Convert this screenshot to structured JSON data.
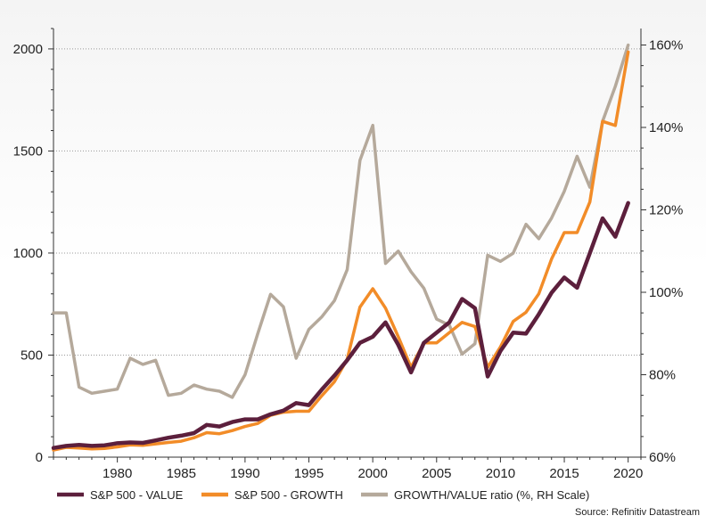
{
  "chart_data": {
    "type": "line",
    "title": "",
    "xlabel": "",
    "ylabel": "",
    "xlim": [
      1975,
      2021
    ],
    "ylim_left": [
      0,
      2100
    ],
    "ylim_right": [
      60,
      164
    ],
    "grid": "horizontal dotted",
    "legend_position": "bottom",
    "x_ticks": [
      1980,
      1985,
      1990,
      1995,
      2000,
      2005,
      2010,
      2015,
      2020
    ],
    "y_left_ticks": [
      0,
      500,
      1000,
      1500,
      2000
    ],
    "y_right_ticks": [
      60,
      80,
      100,
      120,
      140,
      160
    ],
    "y_right_tick_labels": [
      "60%",
      "80%",
      "100%",
      "120%",
      "140%",
      "160%"
    ],
    "x": [
      1975,
      1976,
      1977,
      1978,
      1979,
      1980,
      1981,
      1982,
      1983,
      1984,
      1985,
      1986,
      1987,
      1988,
      1989,
      1990,
      1991,
      1992,
      1993,
      1994,
      1995,
      1996,
      1997,
      1998,
      1999,
      2000,
      2001,
      2002,
      2003,
      2004,
      2005,
      2006,
      2007,
      2008,
      2009,
      2010,
      2011,
      2012,
      2013,
      2014,
      2015,
      2016,
      2017,
      2018,
      2019,
      2020
    ],
    "series": [
      {
        "name": "S&P 500 - VALUE",
        "axis": "left",
        "color": "#5c1f3c",
        "values": [
          45,
          55,
          60,
          55,
          58,
          68,
          72,
          70,
          82,
          95,
          105,
          118,
          158,
          150,
          172,
          185,
          185,
          210,
          228,
          265,
          255,
          330,
          400,
          475,
          560,
          590,
          660,
          550,
          415,
          560,
          610,
          660,
          775,
          730,
          395,
          520,
          610,
          605,
          700,
          805,
          880,
          830,
          1000,
          1170,
          1080,
          1245
        ]
      },
      {
        "name": "S&P 500 - GROWTH",
        "axis": "left",
        "color": "#f28c28",
        "values": [
          35,
          48,
          45,
          40,
          43,
          50,
          60,
          58,
          65,
          72,
          78,
          95,
          120,
          115,
          130,
          150,
          165,
          205,
          220,
          225,
          225,
          300,
          370,
          480,
          735,
          825,
          730,
          590,
          440,
          560,
          560,
          610,
          660,
          640,
          440,
          540,
          665,
          710,
          800,
          970,
          1100,
          1100,
          1250,
          1645,
          1625,
          1985
        ]
      },
      {
        "name": "GROWTH/VALUE ratio (%, RH Scale)",
        "axis": "right",
        "color": "#b5a99b",
        "values": [
          95,
          95,
          77,
          75.5,
          76,
          76.5,
          84,
          82.5,
          83.5,
          75,
          75.5,
          77.5,
          76.5,
          76,
          74.5,
          80,
          90,
          99.5,
          96.5,
          84,
          91,
          94,
          98,
          105.5,
          132,
          140.5,
          107,
          110,
          105,
          101,
          93.5,
          92,
          85,
          87.5,
          109,
          107.5,
          109.5,
          116.5,
          113,
          118,
          124.5,
          133,
          125.5,
          141.5,
          150,
          160
        ]
      }
    ]
  },
  "legend": {
    "items": [
      {
        "label": "S&P 500 - VALUE",
        "color": "#5c1f3c"
      },
      {
        "label": "S&P 500 - GROWTH",
        "color": "#f28c28"
      },
      {
        "label": "GROWTH/VALUE ratio (%, RH Scale)",
        "color": "#b5a99b"
      }
    ]
  },
  "source": "Source: Refinitiv Datastream"
}
